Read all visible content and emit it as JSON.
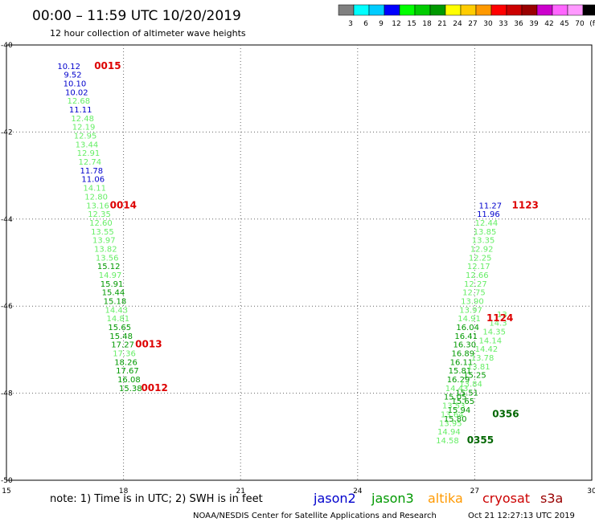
{
  "header": {
    "title": "00:00 – 11:59 UTC 10/20/2019",
    "subtitle": "12 hour collection of altimeter wave heights"
  },
  "legend": {
    "colors": [
      "#808080",
      "#00ffff",
      "#00ccff",
      "#0000ff",
      "#00ff00",
      "#00cc00",
      "#009900",
      "#ffff00",
      "#ffcc00",
      "#ff9900",
      "#ff0000",
      "#cc0000",
      "#990000",
      "#cc00cc",
      "#ff66ff",
      "#ff99ff",
      "#000000"
    ],
    "labels": [
      "3",
      "6",
      "9",
      "12",
      "15",
      "18",
      "21",
      "24",
      "27",
      "30",
      "33",
      "36",
      "39",
      "42",
      "45",
      "70",
      "(ft)"
    ]
  },
  "footer": {
    "note": "note:  1) Time is in UTC;  2) SWH is in feet",
    "satellites": [
      {
        "name": "jason2",
        "color": "#0000cc"
      },
      {
        "name": "jason3",
        "color": "#009900"
      },
      {
        "name": "altika",
        "color": "#ff9900"
      },
      {
        "name": "cryosat",
        "color": "#cc0000"
      },
      {
        "name": "s3a",
        "color": "#990000"
      }
    ],
    "credit": "NOAA/NESDIS Center for Satellite Applications and Research",
    "timestamp": "Oct 21 12:27:13 UTC 2019"
  },
  "chart_data": {
    "type": "scatter",
    "xlim": [
      15,
      30
    ],
    "ylim": [
      -50,
      -40
    ],
    "x_ticks": [
      15,
      18,
      21,
      24,
      27,
      30
    ],
    "y_ticks": [
      -40,
      -42,
      -44,
      -46,
      -48,
      -50
    ],
    "grid": true,
    "points": [
      {
        "x": 16.6,
        "y": -40.55,
        "v": "10.12",
        "c": "#0000cc"
      },
      {
        "x": 16.7,
        "y": -40.75,
        "v": "9.52",
        "c": "#0000cc"
      },
      {
        "x": 16.75,
        "y": -40.95,
        "v": "10.10",
        "c": "#0000cc"
      },
      {
        "x": 16.8,
        "y": -41.15,
        "v": "10.02",
        "c": "#0000cc"
      },
      {
        "x": 16.85,
        "y": -41.35,
        "v": "12.68",
        "c": "#66ee66"
      },
      {
        "x": 16.9,
        "y": -41.55,
        "v": "11.11",
        "c": "#0000cc"
      },
      {
        "x": 16.95,
        "y": -41.75,
        "v": "12.48",
        "c": "#66ee66"
      },
      {
        "x": 16.98,
        "y": -41.95,
        "v": "12.19",
        "c": "#66ee66"
      },
      {
        "x": 17.02,
        "y": -42.15,
        "v": "12.95",
        "c": "#66ee66"
      },
      {
        "x": 17.06,
        "y": -42.35,
        "v": "13.44",
        "c": "#66ee66"
      },
      {
        "x": 17.1,
        "y": -42.55,
        "v": "12.91",
        "c": "#66ee66"
      },
      {
        "x": 17.14,
        "y": -42.75,
        "v": "12.74",
        "c": "#66ee66"
      },
      {
        "x": 17.18,
        "y": -42.95,
        "v": "11.78",
        "c": "#0000cc"
      },
      {
        "x": 17.22,
        "y": -43.15,
        "v": "11.06",
        "c": "#0000cc"
      },
      {
        "x": 17.26,
        "y": -43.35,
        "v": "14.11",
        "c": "#66ee66"
      },
      {
        "x": 17.3,
        "y": -43.55,
        "v": "12.80",
        "c": "#66ee66"
      },
      {
        "x": 17.34,
        "y": -43.75,
        "v": "13.16",
        "c": "#66ee66"
      },
      {
        "x": 17.38,
        "y": -43.95,
        "v": "12.35",
        "c": "#66ee66"
      },
      {
        "x": 17.42,
        "y": -44.15,
        "v": "12.60",
        "c": "#66ee66"
      },
      {
        "x": 17.46,
        "y": -44.35,
        "v": "13.55",
        "c": "#66ee66"
      },
      {
        "x": 17.5,
        "y": -44.55,
        "v": "13.97",
        "c": "#66ee66"
      },
      {
        "x": 17.54,
        "y": -44.75,
        "v": "13.82",
        "c": "#66ee66"
      },
      {
        "x": 17.58,
        "y": -44.95,
        "v": "13.56",
        "c": "#66ee66"
      },
      {
        "x": 17.62,
        "y": -45.15,
        "v": "15.12",
        "c": "#009900"
      },
      {
        "x": 17.66,
        "y": -45.35,
        "v": "14.97",
        "c": "#66ee66"
      },
      {
        "x": 17.7,
        "y": -45.55,
        "v": "15.91",
        "c": "#009900"
      },
      {
        "x": 17.74,
        "y": -45.75,
        "v": "15.44",
        "c": "#009900"
      },
      {
        "x": 17.78,
        "y": -45.95,
        "v": "15.18",
        "c": "#009900"
      },
      {
        "x": 17.82,
        "y": -46.15,
        "v": "14.43",
        "c": "#66ee66"
      },
      {
        "x": 17.86,
        "y": -46.35,
        "v": "14.81",
        "c": "#66ee66"
      },
      {
        "x": 17.9,
        "y": -46.55,
        "v": "15.65",
        "c": "#009900"
      },
      {
        "x": 17.94,
        "y": -46.75,
        "v": "15.48",
        "c": "#009900"
      },
      {
        "x": 17.98,
        "y": -46.95,
        "v": "17.27",
        "c": "#009900"
      },
      {
        "x": 18.02,
        "y": -47.15,
        "v": "17.36",
        "c": "#66ee66"
      },
      {
        "x": 18.06,
        "y": -47.35,
        "v": "18.26",
        "c": "#009900"
      },
      {
        "x": 18.1,
        "y": -47.55,
        "v": "17.67",
        "c": "#009900"
      },
      {
        "x": 18.14,
        "y": -47.75,
        "v": "16.08",
        "c": "#009900"
      },
      {
        "x": 18.18,
        "y": -47.95,
        "v": "15.38",
        "c": "#009900"
      },
      {
        "x": 27.4,
        "y": -43.75,
        "v": "11.27",
        "c": "#0000cc"
      },
      {
        "x": 27.35,
        "y": -43.95,
        "v": "11.96",
        "c": "#0000cc"
      },
      {
        "x": 27.3,
        "y": -44.15,
        "v": "12.44",
        "c": "#66ee66"
      },
      {
        "x": 27.26,
        "y": -44.35,
        "v": "13.85",
        "c": "#66ee66"
      },
      {
        "x": 27.22,
        "y": -44.55,
        "v": "13.35",
        "c": "#66ee66"
      },
      {
        "x": 27.18,
        "y": -44.75,
        "v": "12.92",
        "c": "#66ee66"
      },
      {
        "x": 27.14,
        "y": -44.95,
        "v": "12.25",
        "c": "#66ee66"
      },
      {
        "x": 27.1,
        "y": -45.15,
        "v": "12.17",
        "c": "#66ee66"
      },
      {
        "x": 27.06,
        "y": -45.35,
        "v": "12.66",
        "c": "#66ee66"
      },
      {
        "x": 27.02,
        "y": -45.55,
        "v": "12.27",
        "c": "#66ee66"
      },
      {
        "x": 26.98,
        "y": -45.75,
        "v": "12.75",
        "c": "#66ee66"
      },
      {
        "x": 26.94,
        "y": -45.95,
        "v": "13.90",
        "c": "#66ee66"
      },
      {
        "x": 26.9,
        "y": -46.15,
        "v": "13.97",
        "c": "#66ee66"
      },
      {
        "x": 26.86,
        "y": -46.35,
        "v": "14.91",
        "c": "#66ee66"
      },
      {
        "x": 26.82,
        "y": -46.55,
        "v": "16.04",
        "c": "#009900"
      },
      {
        "x": 26.78,
        "y": -46.75,
        "v": "16.41",
        "c": "#009900"
      },
      {
        "x": 26.74,
        "y": -46.95,
        "v": "16.30",
        "c": "#009900"
      },
      {
        "x": 26.7,
        "y": -47.15,
        "v": "16.89",
        "c": "#009900"
      },
      {
        "x": 26.66,
        "y": -47.35,
        "v": "16.11",
        "c": "#009900"
      },
      {
        "x": 26.62,
        "y": -47.55,
        "v": "15.81",
        "c": "#009900"
      },
      {
        "x": 26.58,
        "y": -47.75,
        "v": "16.29",
        "c": "#009900"
      },
      {
        "x": 26.54,
        "y": -47.95,
        "v": "14.43",
        "c": "#66ee66"
      },
      {
        "x": 26.5,
        "y": -48.15,
        "v": "15.05",
        "c": "#009900"
      },
      {
        "x": 26.46,
        "y": -48.35,
        "v": "13.53",
        "c": "#66ee66"
      },
      {
        "x": 26.42,
        "y": -48.55,
        "v": "13.64",
        "c": "#66ee66"
      },
      {
        "x": 26.38,
        "y": -48.75,
        "v": "13.95",
        "c": "#66ee66"
      },
      {
        "x": 26.34,
        "y": -48.95,
        "v": "14.94",
        "c": "#66ee66"
      },
      {
        "x": 26.3,
        "y": -49.15,
        "v": "14.58",
        "c": "#66ee66"
      },
      {
        "x": 26.5,
        "y": -48.65,
        "v": "15.80",
        "c": "#009900"
      },
      {
        "x": 26.6,
        "y": -48.45,
        "v": "15.94",
        "c": "#009900"
      },
      {
        "x": 26.7,
        "y": -48.25,
        "v": "15.65",
        "c": "#009900"
      },
      {
        "x": 26.8,
        "y": -48.05,
        "v": "15.51",
        "c": "#009900"
      },
      {
        "x": 26.9,
        "y": -47.85,
        "v": "13.84",
        "c": "#66ee66"
      },
      {
        "x": 27.0,
        "y": -47.65,
        "v": "15.25",
        "c": "#009900"
      },
      {
        "x": 27.1,
        "y": -47.45,
        "v": "13.81",
        "c": "#66ee66"
      },
      {
        "x": 27.2,
        "y": -47.25,
        "v": "13.78",
        "c": "#66ee66"
      },
      {
        "x": 27.3,
        "y": -47.05,
        "v": "14.42",
        "c": "#66ee66"
      },
      {
        "x": 27.4,
        "y": -46.85,
        "v": "14.14",
        "c": "#66ee66"
      },
      {
        "x": 27.5,
        "y": -46.65,
        "v": "14.35",
        "c": "#66ee66"
      },
      {
        "x": 27.6,
        "y": -46.45,
        "v": "14.3",
        "c": "#66ee66"
      },
      {
        "x": 27.7,
        "y": -46.25,
        "v": "13",
        "c": "#66ee66"
      }
    ],
    "time_labels": [
      {
        "x": 17.25,
        "y": -40.55,
        "text": "0015",
        "c": "#dd0000"
      },
      {
        "x": 17.65,
        "y": -43.75,
        "text": "0014",
        "c": "#dd0000"
      },
      {
        "x": 18.3,
        "y": -46.95,
        "text": "0013",
        "c": "#dd0000"
      },
      {
        "x": 18.45,
        "y": -47.95,
        "text": "0012",
        "c": "#dd0000"
      },
      {
        "x": 27.95,
        "y": -43.75,
        "text": "1123",
        "c": "#dd0000"
      },
      {
        "x": 27.3,
        "y": -46.35,
        "text": "1124",
        "c": "#dd0000"
      },
      {
        "x": 27.45,
        "y": -48.55,
        "text": "0356",
        "c": "#006600"
      },
      {
        "x": 26.8,
        "y": -49.15,
        "text": "0355",
        "c": "#006600"
      }
    ]
  }
}
